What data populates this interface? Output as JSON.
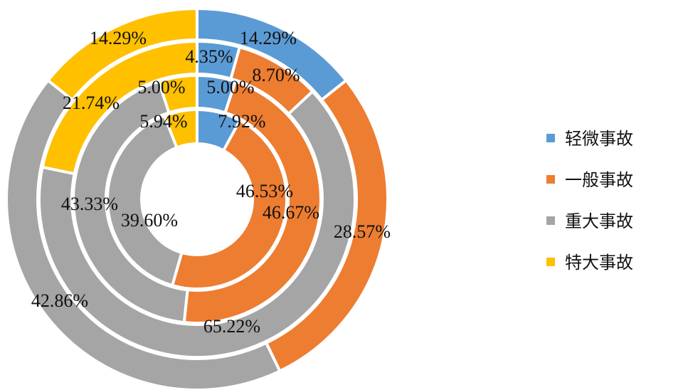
{
  "chart_data": {
    "type": "doughnut",
    "categories": [
      "轻微事故",
      "一般事故",
      "重大事故",
      "特大事故"
    ],
    "colors": [
      "#5b9bd5",
      "#ed7d31",
      "#a5a5a5",
      "#ffc000"
    ],
    "rings": [
      {
        "values": [
          7.92,
          46.53,
          39.6,
          5.94
        ],
        "labels": [
          "7.92%",
          "46.53%",
          "39.60%",
          "5.94%"
        ]
      },
      {
        "values": [
          5.0,
          46.67,
          43.33,
          5.0
        ],
        "labels": [
          "5.00%",
          "46.67%",
          "43.33%",
          "5.00%"
        ]
      },
      {
        "values": [
          4.35,
          8.7,
          65.22,
          21.74
        ],
        "labels": [
          "4.35%",
          "8.70%",
          "65.22%",
          "21.74%"
        ]
      },
      {
        "values": [
          14.29,
          28.57,
          42.86,
          14.29
        ],
        "labels": [
          "14.29%",
          "28.57%",
          "42.86%",
          "14.29%"
        ]
      }
    ],
    "legend_position": "right"
  }
}
